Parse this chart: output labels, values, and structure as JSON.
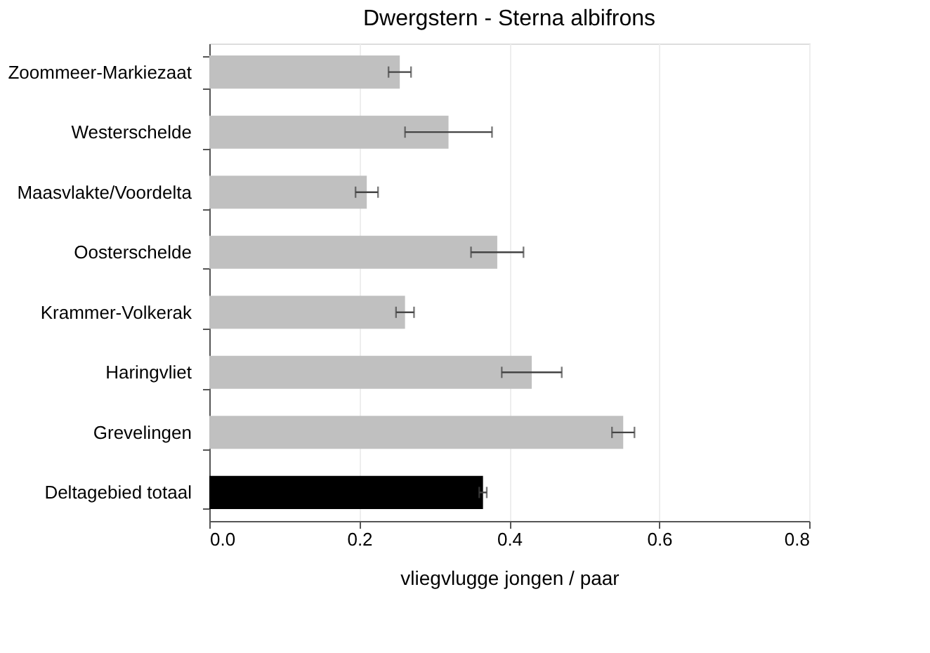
{
  "chart_data": {
    "type": "bar",
    "orientation": "horizontal",
    "title": "Dwergstern - Sterna albifrons",
    "xlabel": "vliegvlugge jongen / paar",
    "categories": [
      "Zoommeer-Markiezaat",
      "Westerschelde",
      "Maasvlakte/Voordelta",
      "Oosterschelde",
      "Krammer-Volkerak",
      "Haringvliet",
      "Grevelingen",
      "Deltagebied totaal"
    ],
    "values": [
      0.254,
      0.319,
      0.21,
      0.384,
      0.261,
      0.43,
      0.552,
      0.365
    ],
    "errors": [
      0.015,
      0.058,
      0.015,
      0.035,
      0.012,
      0.04,
      0.015,
      0.005
    ],
    "colors": [
      "#c0c0c0",
      "#c0c0c0",
      "#c0c0c0",
      "#c0c0c0",
      "#c0c0c0",
      "#c0c0c0",
      "#c0c0c0",
      "#000000"
    ],
    "xlim": [
      0,
      0.8
    ],
    "xticks": [
      {
        "value": 0,
        "label": "0.0"
      },
      {
        "value": 0.2,
        "label": "0.2"
      },
      {
        "value": 0.4,
        "label": "0.4"
      },
      {
        "value": 0.6,
        "label": "0.6"
      },
      {
        "value": 0.8,
        "label": "0.8"
      }
    ],
    "grid": "x"
  }
}
